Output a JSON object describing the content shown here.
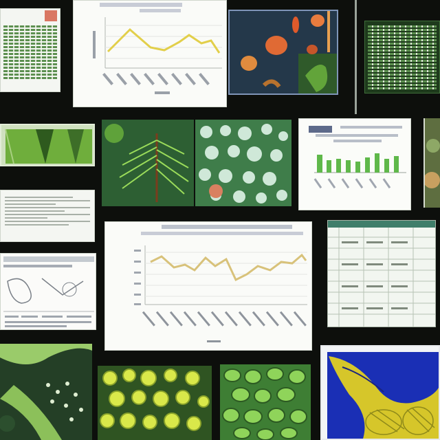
{
  "collage": {
    "background": "#0d0f0c",
    "tiles": [
      {
        "id": "top-left-doc",
        "kind": "document"
      },
      {
        "id": "top-line-chart",
        "kind": "chart"
      },
      {
        "id": "top-peppers",
        "kind": "photo"
      },
      {
        "id": "top-right-spreadsheet",
        "kind": "document"
      },
      {
        "id": "mid-left-leaf",
        "kind": "photo"
      },
      {
        "id": "mid-fern",
        "kind": "photo"
      },
      {
        "id": "mid-cells",
        "kind": "photo"
      },
      {
        "id": "mid-bar-chart",
        "kind": "chart"
      },
      {
        "id": "mid-left-form",
        "kind": "document"
      },
      {
        "id": "lower-left-diagram",
        "kind": "document"
      },
      {
        "id": "center-line-chart",
        "kind": "chart"
      },
      {
        "id": "right-spreadsheet",
        "kind": "document"
      },
      {
        "id": "bottom-left-leaf",
        "kind": "photo"
      },
      {
        "id": "bottom-cells-yellow",
        "kind": "photo"
      },
      {
        "id": "bottom-cells-green",
        "kind": "photo"
      },
      {
        "id": "bottom-right-organism",
        "kind": "illustration"
      }
    ],
    "colors": {
      "paper": "#f4f6f2",
      "leaf_green": "#4f9b2e",
      "cell_yellow": "#d9e84a",
      "chart_line": "#d8c27a",
      "bar_green": "#5fb84a",
      "organism_blue": "#1a2fb5"
    }
  }
}
